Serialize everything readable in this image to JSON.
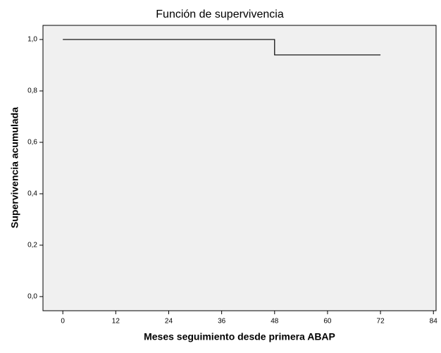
{
  "chart_data": {
    "type": "line",
    "title": "Función de supervivencia",
    "x_label": "Meses seguimiento desde primera ABAP",
    "y_label": "Supervivencia acumulada",
    "series": [
      {
        "color": "#000000",
        "x": [
          0,
          48,
          48,
          72
        ],
        "values": [
          1.0,
          1.0,
          0.94,
          0.94
        ]
      }
    ],
    "xlim": [
      -4.5,
      84.6
    ],
    "xticks": [
      0,
      12,
      24,
      36,
      48,
      60,
      72,
      84
    ],
    "ylim": [
      -0.055,
      1.055
    ],
    "yticks": [
      {
        "value": 0,
        "label": "0,0"
      },
      {
        "value": 0.2,
        "label": "0,2"
      },
      {
        "value": 0.4,
        "label": "0,4"
      },
      {
        "value": 0.6,
        "label": "0,6"
      },
      {
        "value": 0.8,
        "label": "0,8"
      },
      {
        "value": 1,
        "label": "1,0"
      }
    ],
    "plot_background": "#f0f0f0"
  }
}
